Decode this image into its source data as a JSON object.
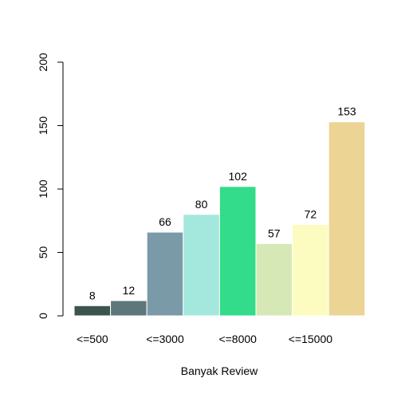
{
  "chart_data": {
    "type": "bar",
    "title": "",
    "xlabel": "Banyak Review",
    "ylabel": "",
    "ylim": [
      0,
      200
    ],
    "yticks": [
      0,
      50,
      100,
      150,
      200
    ],
    "grid": false,
    "categories": [
      "<=500",
      "",
      "<=3000",
      "",
      "<=8000",
      "",
      "<=15000",
      ""
    ],
    "values": [
      8,
      12,
      66,
      80,
      102,
      57,
      72,
      153
    ],
    "data_labels": [
      "8",
      "12",
      "66",
      "80",
      "102",
      "57",
      "72",
      "153"
    ],
    "colors": [
      "#3b554e",
      "#5f7779",
      "#7a9aa8",
      "#a4e7dd",
      "#32dc8a",
      "#d7e8b7",
      "#fdfcc0",
      "#ecd494"
    ]
  }
}
